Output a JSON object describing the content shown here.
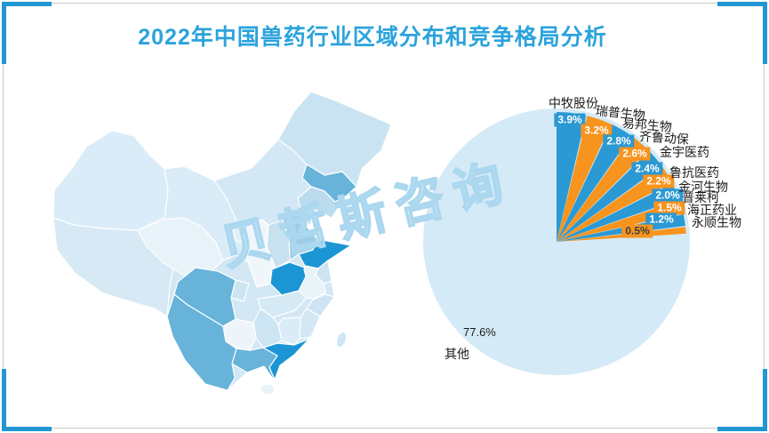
{
  "page": {
    "title": "2022年中国兽药行业区域分布和竞争格局分析",
    "title_color": "#2BA3DC"
  },
  "frame": {
    "border_color": "#C9C9C9",
    "accent_color": "#2196D3"
  },
  "watermark": {
    "text": "贝哲斯咨询",
    "color": "#ABD7EF"
  },
  "map": {
    "palette": {
      "darkest": "#1C95D4",
      "medium": "#68B3DA",
      "light": "#D3E7F4",
      "lightest": "#EFF6FB"
    }
  },
  "chart_data": {
    "type": "pie",
    "title": "2022年中国兽药行业区域分布和竞争格局分析",
    "value_unit": "%",
    "legend_position": "labels-around-slices",
    "segments": [
      {
        "label": "中牧股份",
        "value": 3.9,
        "value_label": "3.9%"
      },
      {
        "label": "瑞普生物",
        "value": 3.2,
        "value_label": "3.2%"
      },
      {
        "label": "易邦生物",
        "value": 2.8,
        "value_label": "2.8%"
      },
      {
        "label": "齐鲁动保",
        "value": 2.6,
        "value_label": "2.6%"
      },
      {
        "label": "金宇医药",
        "value": 2.4,
        "value_label": "2.4%"
      },
      {
        "label": "鲁抗医药",
        "value": 2.2,
        "value_label": "2.2%"
      },
      {
        "label": "金河生物",
        "value": 2.0,
        "value_label": "2.0%"
      },
      {
        "label": "普莱柯",
        "value": 1.5,
        "value_label": "1.5%"
      },
      {
        "label": "海正药业",
        "value": 1.2,
        "value_label": "1.2%"
      },
      {
        "label": "永顺生物",
        "value": 0.5,
        "value_label": "0.5%"
      },
      {
        "label": "其他",
        "value": 77.6,
        "value_label": "77.6%"
      }
    ],
    "colors": {
      "slice_blue": "#2B99D3",
      "slice_orange": "#F7941E",
      "other_circle": "#D5EAF7",
      "label_text_light": "#FFFFFF",
      "label_text_dark": "#404040"
    }
  }
}
